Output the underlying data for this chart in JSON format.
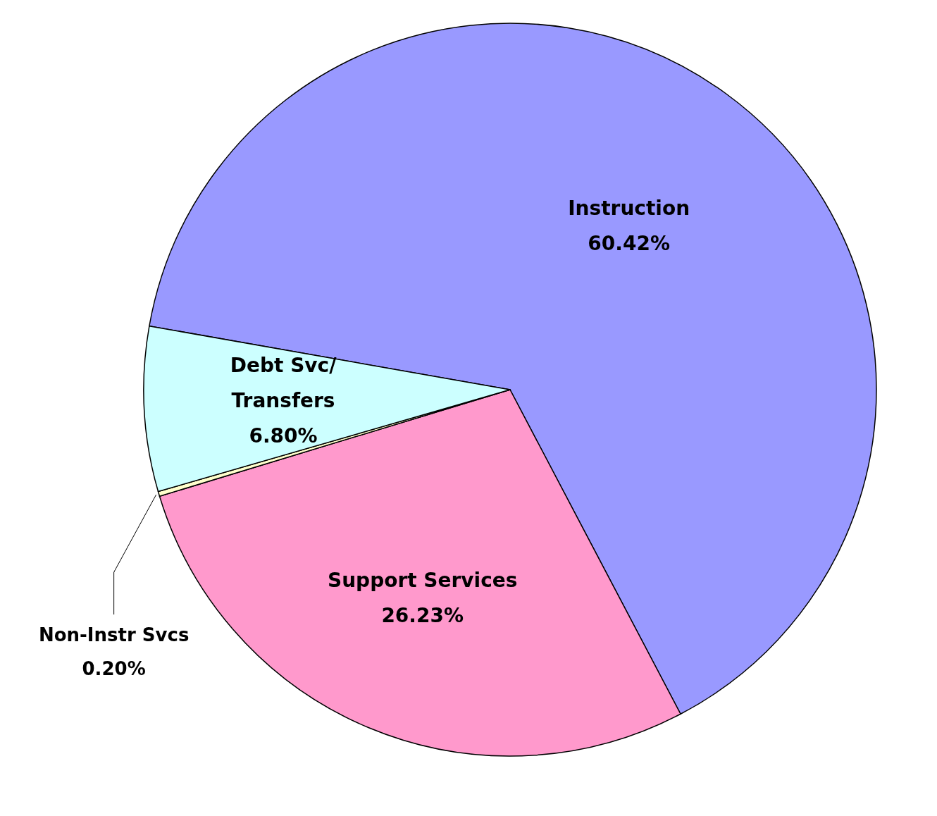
{
  "chart_data": {
    "type": "pie",
    "categories": [
      "Instruction",
      "Support Services",
      "Non-Instr Svcs",
      "Debt Svc/ Transfers"
    ],
    "values": [
      60.42,
      26.23,
      0.2,
      6.8
    ],
    "value_labels": [
      "60.42%",
      "26.23%",
      "0.20%",
      "6.80%"
    ],
    "colors": [
      "#9999ff",
      "#ff99cc",
      "#ffffcc",
      "#ccffff"
    ]
  }
}
